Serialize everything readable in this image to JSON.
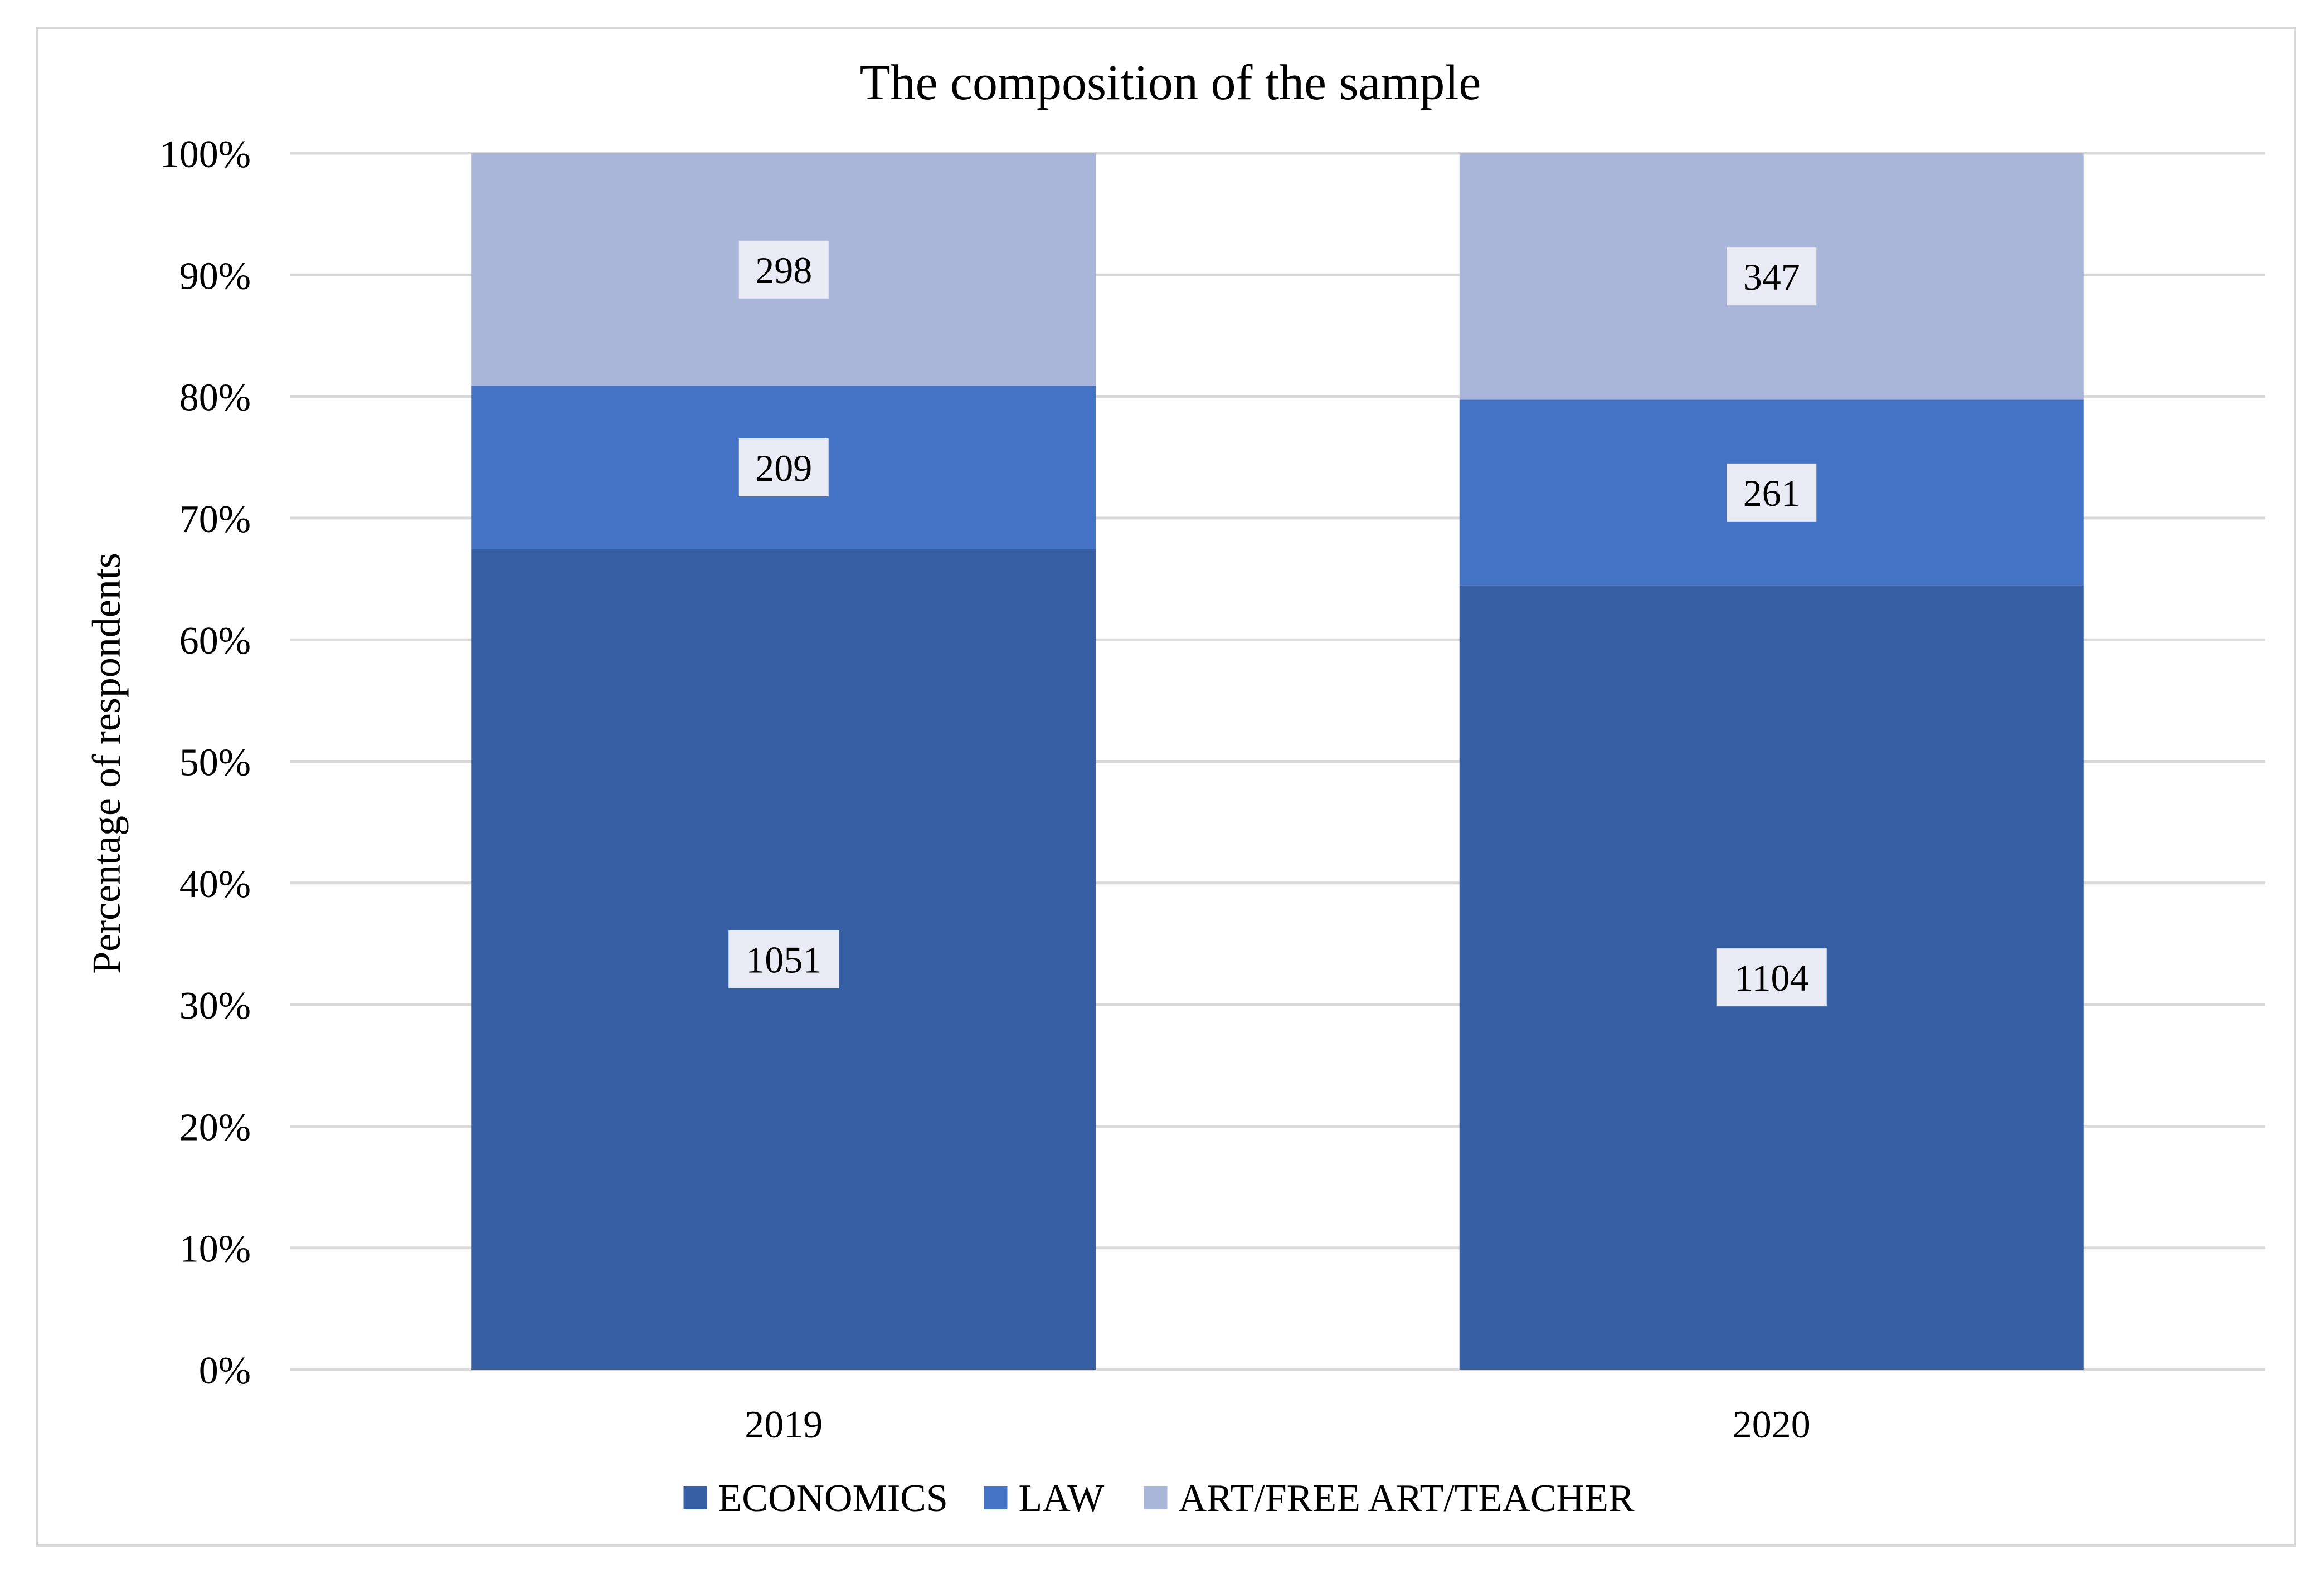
{
  "chart_data": {
    "type": "bar",
    "stacked": true,
    "normalized": true,
    "title": "The composition of the sample",
    "ylabel": "Percentage of respondents",
    "xlabel": "",
    "categories": [
      "2019",
      "2020"
    ],
    "yticks": [
      "0%",
      "10%",
      "20%",
      "30%",
      "40%",
      "50%",
      "60%",
      "70%",
      "80%",
      "90%",
      "100%"
    ],
    "ylim": [
      0,
      100
    ],
    "grid": true,
    "legend_position": "bottom",
    "series": [
      {
        "name": "ECONOMICS",
        "values": [
          1051,
          1104
        ],
        "color": "#365ea2"
      },
      {
        "name": "LAW",
        "values": [
          209,
          261
        ],
        "color": "#4472c4"
      },
      {
        "name": "ART/FREE ART/TEACHER",
        "values": [
          298,
          347
        ],
        "color": "#a9b6da"
      }
    ]
  }
}
